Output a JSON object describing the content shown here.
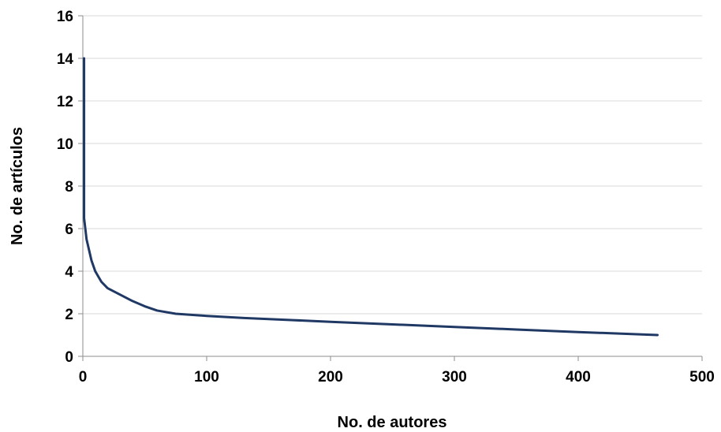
{
  "chart_data": {
    "type": "line",
    "title": "",
    "xlabel": "No. de autores",
    "ylabel": "No. de artículos",
    "xlim": [
      0,
      500
    ],
    "ylim": [
      0,
      16
    ],
    "xticks": [
      0,
      100,
      200,
      300,
      400,
      500
    ],
    "yticks": [
      0,
      2,
      4,
      6,
      8,
      10,
      12,
      14,
      16
    ],
    "grid": "horizontal",
    "legend": "none",
    "series": [
      {
        "color": "#1f3864",
        "x": [
          1,
          1,
          1,
          1,
          2,
          3,
          5,
          7,
          10,
          15,
          20,
          30,
          40,
          50,
          60,
          75,
          100,
          130,
          170,
          200,
          250,
          300,
          350,
          400,
          464
        ],
        "y": [
          14,
          9,
          7,
          6.5,
          6,
          5.5,
          5,
          4.5,
          4,
          3.5,
          3.2,
          2.9,
          2.6,
          2.35,
          2.15,
          2,
          1.9,
          1.8,
          1.7,
          1.62,
          1.5,
          1.38,
          1.26,
          1.14,
          1
        ]
      }
    ]
  }
}
